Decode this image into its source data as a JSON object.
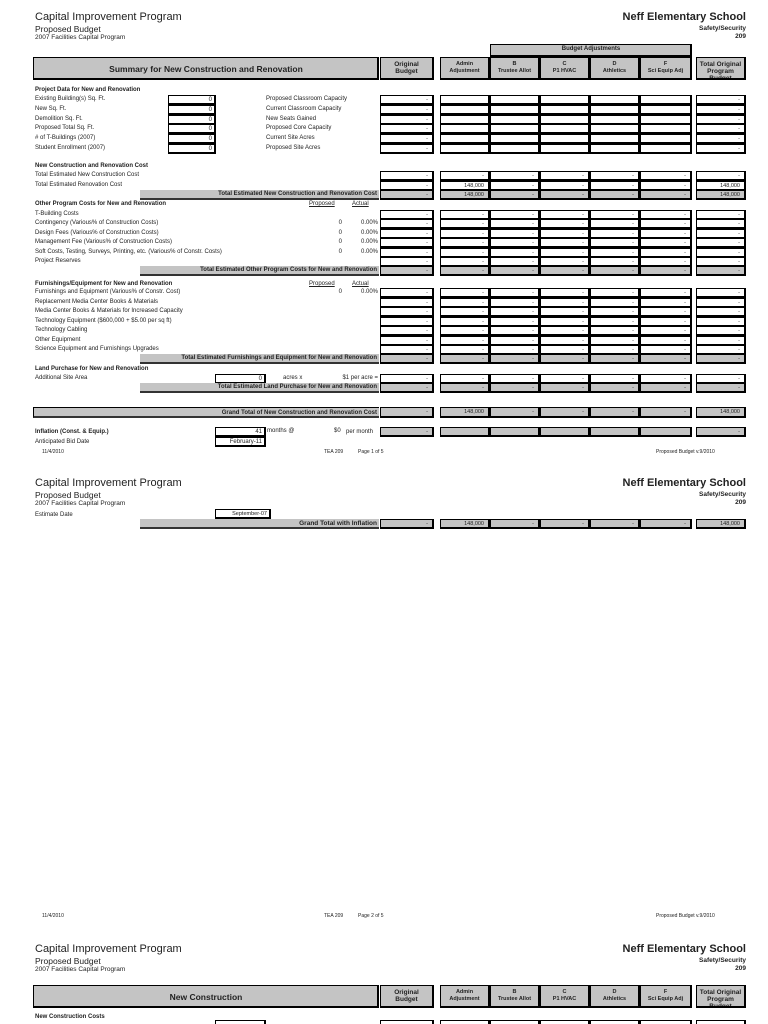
{
  "header": {
    "title": "Capital Improvement Program",
    "subtitle": "Proposed Budget",
    "program": "2007 Facilities Capital Program",
    "school": "Neff Elementary School",
    "category": "Safety/Security",
    "number": "209"
  },
  "budget_adjustments_label": "Budget Adjustments",
  "columns": [
    {
      "top": "Original",
      "bottom": "Budget"
    },
    {
      "top": "Admin",
      "bottom": "Adjustment"
    },
    {
      "top": "B",
      "bottom": "Trustee Allot"
    },
    {
      "top": "C",
      "bottom": "P1 HVAC"
    },
    {
      "top": "D",
      "bottom": "Athletics"
    },
    {
      "top": "F",
      "bottom": "Sci Equip Adj"
    },
    {
      "top": "Total Original Program",
      "bottom": "Budget"
    }
  ],
  "page1": {
    "table_title": "Summary for New Construction and Renovation",
    "project_data": {
      "heading": "Project Data for New and Renovation",
      "rows": [
        {
          "label": "Existing Building(s) Sq. Ft.",
          "input": "0",
          "mid": "Proposed Classroom Capacity",
          "values": [
            "-",
            "",
            "",
            "",
            "",
            "",
            "-"
          ]
        },
        {
          "label": "New Sq. Ft.",
          "input": "0",
          "mid": "Current Classroom Capacity",
          "values": [
            "-",
            "",
            "",
            "",
            "",
            "",
            "-"
          ]
        },
        {
          "label": "Demolition Sq. Ft.",
          "input": "0",
          "mid": "New Seats Gained",
          "values": [
            "-",
            "",
            "",
            "",
            "",
            "",
            "-"
          ]
        },
        {
          "label": "Proposed Total Sq. Ft.",
          "input": "0",
          "mid": "Proposed Core Capacity",
          "values": [
            "-",
            "",
            "",
            "",
            "",
            "",
            "-"
          ]
        },
        {
          "label": "# of T-Buildings (2007)",
          "input": "0",
          "mid": "Current Site Acres",
          "values": [
            "-",
            "",
            "",
            "",
            "",
            "",
            "-"
          ]
        },
        {
          "label": "Student Enrollment (2007)",
          "input": "0",
          "mid": "Proposed Site Acres",
          "values": [
            "-",
            "",
            "",
            "",
            "",
            "",
            "-"
          ]
        }
      ]
    },
    "construction_cost": {
      "heading": "New Construction and Renovation Cost",
      "rows": [
        {
          "label": "Total Estimated New Construction Cost",
          "values": [
            "-",
            "-",
            "-",
            "-",
            "-",
            "-",
            "-"
          ]
        },
        {
          "label": "Total Estimated Renovation Cost",
          "values": [
            "-",
            "148,000",
            "-",
            "-",
            "-",
            "-",
            "148,000"
          ]
        }
      ],
      "total": {
        "label": "Total Estimated  New Construction and Renovation Cost",
        "values": [
          "-",
          "148,000",
          "-",
          "-",
          "-",
          "-",
          "148,000"
        ]
      }
    },
    "other_costs": {
      "heading": "Other Program Costs for New and Renovation",
      "proposed_label": "Proposed",
      "actual_label": "Actual",
      "rows": [
        {
          "label": "T-Building Costs",
          "values": [
            "-",
            "-",
            "-",
            "-",
            "-",
            "-",
            "-"
          ]
        },
        {
          "label": "Contingency (Various% of Construction Costs)",
          "proposed": "0",
          "actual": "0.00%",
          "values": [
            "-",
            "-",
            "-",
            "-",
            "-",
            "-",
            "-"
          ]
        },
        {
          "label": "Design Fees (Various% of Construction Costs)",
          "proposed": "0",
          "actual": "0.00%",
          "values": [
            "-",
            "-",
            "-",
            "-",
            "-",
            "-",
            "-"
          ]
        },
        {
          "label": "Management Fee (Various% of Construction Costs)",
          "proposed": "0",
          "actual": "0.00%",
          "values": [
            "-",
            "-",
            "-",
            "-",
            "-",
            "-",
            "-"
          ]
        },
        {
          "label": "Soft Costs, Testing, Surveys, Printing, etc. (Various% of Constr. Costs)",
          "proposed": "0",
          "actual": "0.00%",
          "values": [
            "-",
            "-",
            "-",
            "-",
            "-",
            "-",
            "-"
          ]
        },
        {
          "label": "Project Reserves",
          "values": [
            "-",
            "-",
            "-",
            "-",
            "-",
            "-",
            "-"
          ]
        }
      ],
      "total": {
        "label": "Total Estimated Other Program Costs for New and Renovation",
        "values": [
          "-",
          "-",
          "-",
          "-",
          "-",
          "-",
          "-"
        ]
      }
    },
    "furnishings": {
      "heading": "Furnishings/Equipment for New and Renovation",
      "proposed_label": "Proposed",
      "actual_label": "Actual",
      "rows": [
        {
          "label": "Furnishings and Equipment (Various% of Constr. Cost)",
          "proposed": "0",
          "actual": "0.00%",
          "values": [
            "-",
            "-",
            "-",
            "-",
            "-",
            "-",
            "-"
          ]
        },
        {
          "label": "Replacement Media Center Books & Materials",
          "values": [
            "-",
            "-",
            "-",
            "-",
            "-",
            "-",
            "-"
          ]
        },
        {
          "label": "Media Center Books & Materials for Increased Capacity",
          "values": [
            "-",
            "-",
            "-",
            "-",
            "-",
            "-",
            "-"
          ]
        },
        {
          "label": "Technology Equipment ($600,000 + $5.00 per sq ft)",
          "values": [
            "-",
            "-",
            "-",
            "-",
            "-",
            "-",
            "-"
          ]
        },
        {
          "label": "Technology Cabling",
          "values": [
            "-",
            "-",
            "-",
            "-",
            "-",
            "-",
            "-"
          ]
        },
        {
          "label": "Other Equipment",
          "values": [
            "-",
            "-",
            "-",
            "-",
            "-",
            "-",
            "-"
          ]
        },
        {
          "label": "Science Equipment and Furnishings Upgrades",
          "values": [
            "-",
            "-",
            "-",
            "-",
            "-",
            "-",
            "-"
          ]
        }
      ],
      "total": {
        "label": "Total Estimated Furnishings and Equipment for New and Renovation",
        "values": [
          "-",
          "-",
          "-",
          "-",
          "-",
          "-",
          "-"
        ]
      }
    },
    "land": {
      "heading": "Land Purchase for New and Renovation",
      "row": {
        "label": "Additional Site Area",
        "input": "0",
        "unit": "acres x",
        "rate": "$1  per acre =",
        "values": [
          "-",
          "-",
          "-",
          "-",
          "-",
          "-",
          "-"
        ]
      },
      "total": {
        "label": "Total Estimated Land Purchase for New and Renovation",
        "values": [
          "-",
          "-",
          "-",
          "-",
          "-",
          "-",
          "-"
        ]
      }
    },
    "grand_total": {
      "label": "Grand Total of New Construction and Renovation Cost",
      "values": [
        "-",
        "148,000",
        "-",
        "-",
        "-",
        "-",
        "148,000"
      ]
    },
    "inflation": {
      "label": "Inflation (Const. & Equip.)",
      "months": "41",
      "months_label": "months @",
      "rate": "$0",
      "rate_label": "per month",
      "values": [
        "-",
        "",
        "",
        "",
        "",
        "",
        "-"
      ]
    },
    "bid_date": {
      "label": "Anticipated Bid Date",
      "value": "February-11"
    },
    "footer": {
      "date": "11/4/2010",
      "form": "TEA 209",
      "page": "Page 1 of 5",
      "version": "Proposed Budget v.9/2010"
    }
  },
  "page2": {
    "estimate_date": {
      "label": "Estimate Date",
      "value": "September-07"
    },
    "grand_total": {
      "label": "Grand Total with Inflation",
      "values": [
        "-",
        "148,000",
        "-",
        "-",
        "-",
        "-",
        "148,000"
      ]
    },
    "footer": {
      "date": "11/4/2010",
      "form": "TEA 209",
      "page": "Page 2 of 5",
      "version": "Proposed Budget v.9/2010"
    }
  },
  "page3": {
    "table_title": "New Construction",
    "section_heading": "New Construction Costs"
  }
}
